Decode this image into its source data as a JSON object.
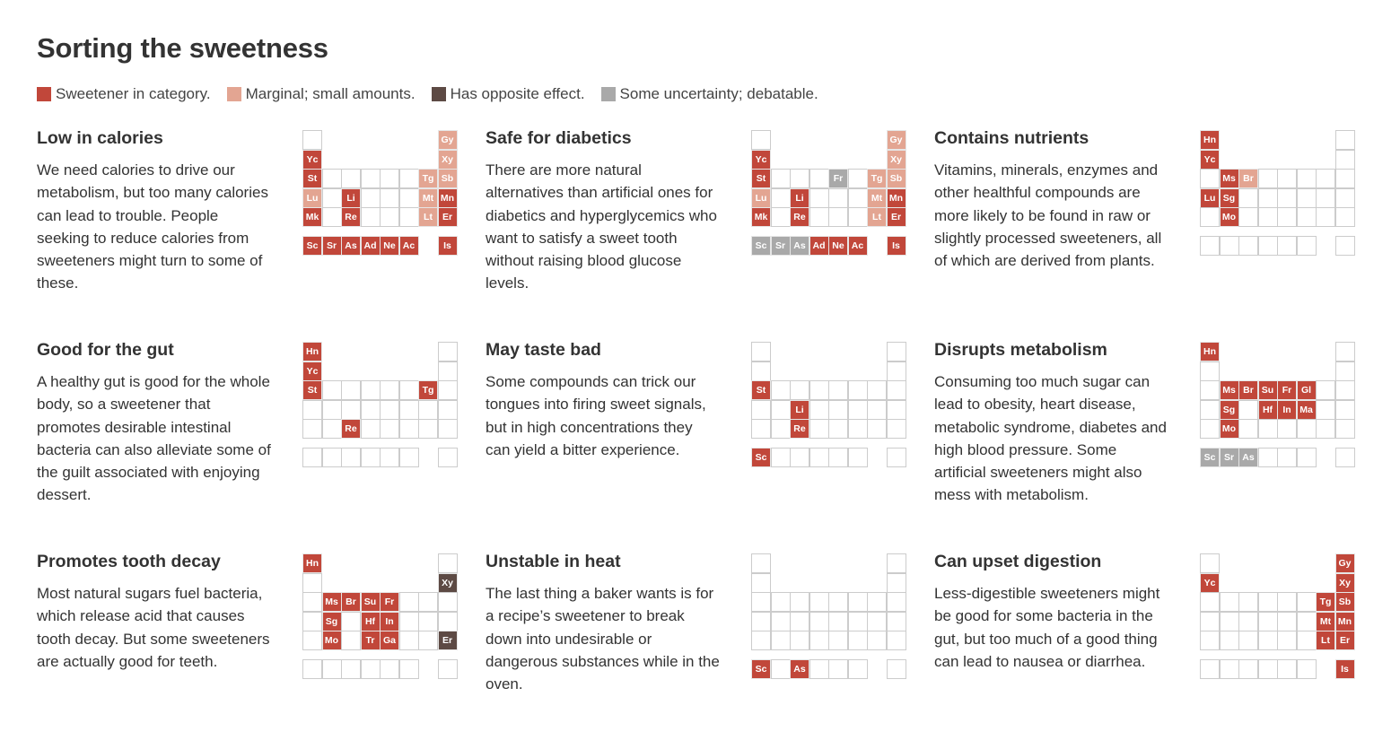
{
  "title": "Sorting the sweetness",
  "colors": {
    "in": "#c1473a",
    "marginal": "#e3a592",
    "opposite": "#5d4a44",
    "uncertain": "#a9a9a9"
  },
  "legend": [
    {
      "state": "in",
      "label": "Sweetener in category."
    },
    {
      "state": "marginal",
      "label": "Marginal; small amounts."
    },
    {
      "state": "opposite",
      "label": "Has opposite effect."
    },
    {
      "state": "uncertain",
      "label": "Some uncertainty; debatable."
    }
  ],
  "panels": [
    {
      "title": "Low in calories",
      "text": "We need calories to drive our\nmetabolism, but too many calories\ncan lead to trouble. People\nseeking to reduce calories from\nsweeteners might turn to some of\nthese.",
      "cells": {
        "Gy": "marginal",
        "Yc": "in",
        "Xy": "marginal",
        "St": "in",
        "Tg": "marginal",
        "Sb": "marginal",
        "Lu": "marginal",
        "Li": "in",
        "Mt": "marginal",
        "Mn": "in",
        "Mk": "in",
        "Re": "in",
        "Lt": "marginal",
        "Er": "in",
        "Sc": "in",
        "Sr": "in",
        "As": "in",
        "Ad": "in",
        "Ne": "in",
        "Ac": "in",
        "Is": "in"
      }
    },
    {
      "title": "Safe for diabetics",
      "text": "There are more natural\nalternatives than artificial ones for\ndiabetics and hyperglycemics who\nwant to satisfy a sweet tooth\nwithout raising blood glucose\nlevels.",
      "cells": {
        "Gy": "marginal",
        "Yc": "in",
        "Xy": "marginal",
        "St": "in",
        "Fr": "uncertain",
        "Tg": "marginal",
        "Sb": "marginal",
        "Lu": "marginal",
        "Li": "in",
        "Mt": "marginal",
        "Mn": "in",
        "Mk": "in",
        "Re": "in",
        "Lt": "marginal",
        "Er": "in",
        "Sc": "uncertain",
        "Sr": "uncertain",
        "As": "uncertain",
        "Ad": "in",
        "Ne": "in",
        "Ac": "in",
        "Is": "in"
      }
    },
    {
      "title": "Contains nutrients",
      "text": "Vitamins, minerals, enzymes and\nother healthful compounds are\nmore likely to be found in raw or\nslightly processed sweeteners, all\nof which are derived from plants.",
      "cells": {
        "Hn": "in",
        "Yc": "in",
        "Ms": "in",
        "Br": "marginal",
        "Lu": "in",
        "Sg": "in",
        "Mo": "in"
      }
    },
    {
      "title": "Good for the gut",
      "text": "A healthy gut is good for the whole\nbody, so a sweetener that\npromotes desirable intestinal\nbacteria can also alleviate some of\nthe guilt associated with enjoying\ndessert.",
      "cells": {
        "Hn": "in",
        "Yc": "in",
        "St": "in",
        "Tg": "in",
        "Re": "in"
      }
    },
    {
      "title": "May taste bad",
      "text": "Some compounds can trick our\ntongues into firing sweet signals,\nbut in high concentrations they\ncan yield a bitter experience.",
      "cells": {
        "St": "in",
        "Li": "in",
        "Re": "in",
        "Sc": "in"
      }
    },
    {
      "title": "Disrupts metabolism",
      "text": "Consuming too much sugar can\nlead to obesity, heart disease,\nmetabolic syndrome, diabetes and\nhigh blood pressure. Some\nartificial sweeteners might also\nmess with metabolism.",
      "cells": {
        "Hn": "in",
        "Ms": "in",
        "Br": "in",
        "Su": "in",
        "Fr": "in",
        "Gl": "in",
        "Sg": "in",
        "Hf": "in",
        "In": "in",
        "Ma": "in",
        "Mo": "in",
        "Sc": "uncertain",
        "Sr": "uncertain",
        "As": "uncertain"
      }
    },
    {
      "title": "Promotes tooth decay",
      "text": "Most natural sugars fuel bacteria,\nwhich release acid that causes\ntooth decay. But some sweeteners\nare actually good for teeth.",
      "cells": {
        "Hn": "in",
        "Xy": "opposite",
        "Ms": "in",
        "Br": "in",
        "Su": "in",
        "Fr": "in",
        "Sg": "in",
        "Hf": "in",
        "In": "in",
        "Mo": "in",
        "Tr": "in",
        "Ga": "in",
        "Er": "opposite"
      }
    },
    {
      "title": "Unstable in heat",
      "text": "The last thing a baker wants is for\na recipe’s sweetener to break\ndown into undesirable or\ndangerous substances while in the\noven.",
      "cells": {
        "Sc": "in",
        "As": "in"
      }
    },
    {
      "title": "Can upset digestion",
      "text": "Less-digestible sweeteners might\nbe good for some bacteria in the\ngut, but too much of a good thing\ncan lead to nausea or diarrhea.",
      "cells": {
        "Gy": "in",
        "Yc": "in",
        "Xy": "in",
        "Tg": "in",
        "Sb": "in",
        "Mt": "in",
        "Mn": "in",
        "Lt": "in",
        "Er": "in",
        "Is": "in"
      }
    }
  ]
}
